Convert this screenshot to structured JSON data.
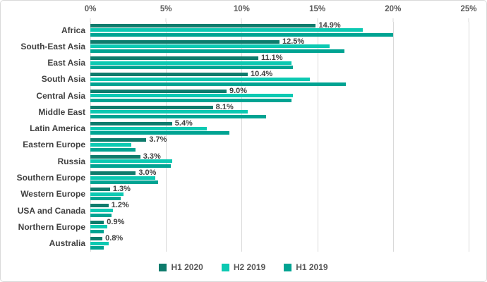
{
  "chart_data": {
    "type": "bar",
    "orientation": "horizontal",
    "title": "",
    "categories": [
      "Africa",
      "South-East Asia",
      "East Asia",
      "South Asia",
      "Central Asia",
      "Middle East",
      "Latin America",
      "Eastern Europe",
      "Russia",
      "Southern Europe",
      "Western Europe",
      "USA and Canada",
      "Northern Europe",
      "Australia"
    ],
    "series": [
      {
        "name": "H1 2020",
        "color": "#0e7b6c",
        "values": [
          14.9,
          12.5,
          11.1,
          10.4,
          9.0,
          8.1,
          5.4,
          3.7,
          3.3,
          3.0,
          1.3,
          1.2,
          0.9,
          0.8
        ]
      },
      {
        "name": "H2 2019",
        "color": "#0cc9b2",
        "values": [
          18.0,
          15.8,
          13.3,
          14.5,
          13.4,
          10.4,
          7.7,
          2.7,
          5.4,
          4.3,
          2.2,
          1.5,
          1.1,
          1.2
        ]
      },
      {
        "name": "H1 2019",
        "color": "#00a392",
        "values": [
          20.0,
          16.8,
          13.4,
          16.9,
          13.3,
          11.6,
          9.2,
          3.0,
          5.3,
          4.5,
          2.0,
          1.4,
          0.9,
          0.9
        ]
      }
    ],
    "data_labels": [
      "14.9%",
      "12.5%",
      "11.1%",
      "10.4%",
      "9.0%",
      "8.1%",
      "5.4%",
      "3.7%",
      "3.3%",
      "3.0%",
      "1.3%",
      "1.2%",
      "0.9%",
      "0.8%"
    ],
    "data_labels_series": "H1 2020",
    "x_axis": {
      "position": "top",
      "min": 0,
      "max": 25,
      "ticks": [
        {
          "label": "0%",
          "value": 0
        },
        {
          "label": "5%",
          "value": 5
        },
        {
          "label": "10%",
          "value": 10
        },
        {
          "label": "15%",
          "value": 15
        },
        {
          "label": "20%",
          "value": 20
        },
        {
          "label": "25%",
          "value": 25
        }
      ]
    },
    "legend": {
      "position": "bottom",
      "entries": [
        "H1 2020",
        "H2 2019",
        "H1 2019"
      ]
    },
    "grid": true
  },
  "styles": {
    "background": "#ffffff",
    "border_color": "#d9d9d9",
    "grid_color": "#d9d9d9",
    "axis_label_color": "#595959",
    "category_label_color": "#404040",
    "data_label_color": "#404040",
    "legend_label_color": "#595959"
  }
}
